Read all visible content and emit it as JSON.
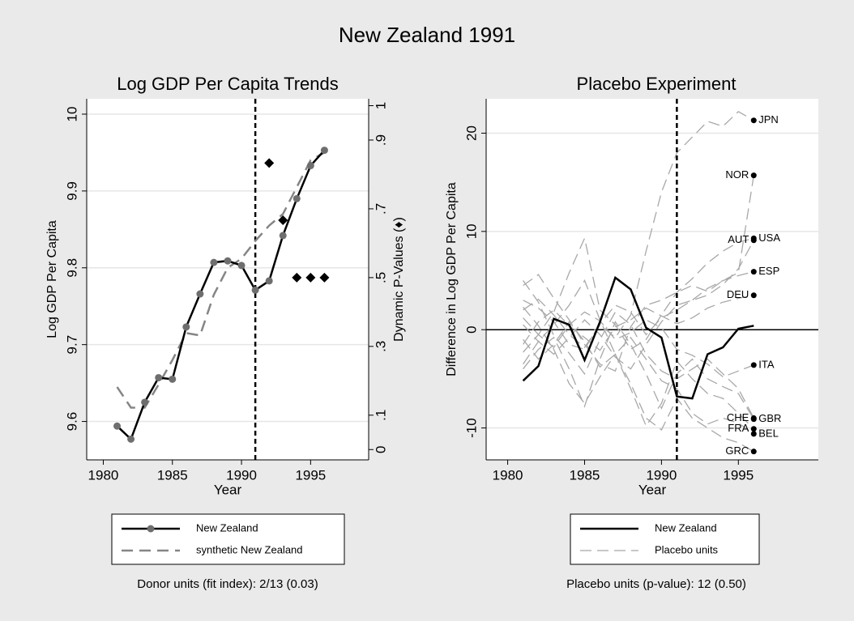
{
  "title": "New Zealand 1991",
  "chart_data": [
    {
      "type": "line",
      "title": "Log GDP Per Capita Trends",
      "x_label": "Year",
      "y_label": "Log GDP Per Capita",
      "y2_label": "Dynamic P-Values (♦)",
      "x": [
        1981,
        1982,
        1983,
        1984,
        1985,
        1986,
        1987,
        1988,
        1989,
        1990,
        1991,
        1992,
        1993,
        1994,
        1995,
        1996
      ],
      "series": [
        {
          "name": "New Zealand",
          "color": "#000000",
          "marker_color": "#6e6e6e",
          "marker": true,
          "dash": "none",
          "values": [
            9.594,
            9.577,
            9.625,
            9.657,
            9.655,
            9.723,
            9.766,
            9.807,
            9.809,
            9.803,
            9.771,
            9.783,
            9.842,
            9.89,
            9.933,
            9.953
          ]
        },
        {
          "name": "synthetic New Zealand",
          "color": "#858585",
          "marker": false,
          "dash": "14,8",
          "values": [
            9.645,
            9.618,
            9.618,
            9.648,
            9.68,
            9.715,
            9.712,
            9.765,
            9.8,
            9.812,
            9.835,
            9.855,
            9.87,
            9.905,
            9.94,
            9.95
          ]
        }
      ],
      "p_values": {
        "axis": "y2",
        "color": "#000000",
        "x": [
          1992,
          1993,
          1994,
          1995,
          1996
        ],
        "values": [
          0.833,
          0.667,
          0.5,
          0.5,
          0.5
        ]
      },
      "vline": 1991,
      "xlim": [
        1978.8,
        1999.2
      ],
      "xticks": [
        1980,
        1985,
        1990,
        1995
      ],
      "ylim": [
        9.55,
        10.02
      ],
      "yticks": [
        9.6,
        9.7,
        9.8,
        9.9,
        10
      ],
      "y2lim": [
        -0.03,
        1.02
      ],
      "y2ticks": [
        0,
        {
          "value": 0.1,
          "label": ".1"
        },
        {
          "value": 0.3,
          "label": ".3"
        },
        {
          "value": 0.5,
          "label": ".5"
        },
        {
          "value": 0.7,
          "label": ".7"
        },
        {
          "value": 0.9,
          "label": ".9"
        },
        1
      ],
      "grid": true,
      "note": "Donor units (fit index): 2/13 (0.03)"
    },
    {
      "type": "placebo",
      "title": "Placebo Experiment",
      "x_label": "Year",
      "y_label": "Difference in Log  GDP Per Capita",
      "x": [
        1981,
        1982,
        1983,
        1984,
        1985,
        1986,
        1987,
        1988,
        1989,
        1990,
        1991,
        1992,
        1993,
        1994,
        1995,
        1996
      ],
      "series": [
        {
          "name": "New Zealand",
          "color": "#000000",
          "dash": "none",
          "values": [
            -5.2,
            -3.7,
            1.1,
            0.5,
            -3.1,
            0.8,
            5.3,
            4.1,
            0.2,
            -0.8,
            -6.8,
            -7.0,
            -2.5,
            -1.8,
            0.1,
            0.4
          ]
        }
      ],
      "placebo": {
        "name": "Placebo units",
        "color": "#a8a8a8",
        "dash": "14,7",
        "units": [
          {
            "label": "JPN",
            "label_side": "right",
            "values": [
              2.0,
              3.1,
              1.5,
              -0.5,
              -1.8,
              0.5,
              -0.8,
              1.5,
              8.0,
              14.0,
              18.0,
              19.6,
              21.2,
              20.7,
              22.2,
              21.3
            ]
          },
          {
            "label": "NOR",
            "label_side": "left",
            "values": [
              4.5,
              5.6,
              3.2,
              1.0,
              -1.5,
              -3.5,
              -4.2,
              0.3,
              2.5,
              3.0,
              3.8,
              4.5,
              3.9,
              5.0,
              5.8,
              15.7
            ]
          },
          {
            "label": "USA",
            "label_side": "right",
            "values": [
              -2.3,
              -0.5,
              1.8,
              5.8,
              9.3,
              2.0,
              0.5,
              -2.0,
              -1.0,
              1.5,
              3.8,
              5.2,
              6.8,
              8.0,
              8.9,
              9.3
            ]
          },
          {
            "label": "AUT",
            "label_side": "left",
            "values": [
              0.5,
              -1.2,
              -2.5,
              -0.8,
              1.0,
              -0.5,
              -2.8,
              -4.0,
              -1.5,
              0.8,
              2.5,
              3.0,
              3.5,
              4.6,
              6.2,
              9.1
            ]
          },
          {
            "label": "ESP",
            "label_side": "right",
            "values": [
              3.0,
              2.2,
              0.8,
              -1.5,
              -2.0,
              0.6,
              2.5,
              1.8,
              -0.5,
              1.2,
              2.0,
              3.0,
              4.2,
              5.0,
              5.5,
              5.9
            ]
          },
          {
            "label": "DEU",
            "label_side": "left",
            "values": [
              -1.5,
              0.8,
              2.0,
              0.4,
              -0.8,
              -2.1,
              0.3,
              1.0,
              2.2,
              1.4,
              0.6,
              1.2,
              2.2,
              2.8,
              3.2,
              3.5
            ]
          },
          {
            "label": "ITA",
            "label_side": "right",
            "values": [
              1.2,
              -0.5,
              -1.8,
              0.5,
              1.8,
              0.9,
              -1.0,
              -0.3,
              1.0,
              0.2,
              -2.0,
              -2.6,
              -3.5,
              -4.8,
              -4.2,
              -3.6
            ]
          },
          {
            "label": "CHE",
            "label_side": "left",
            "values": [
              5.0,
              2.8,
              -0.6,
              -2.4,
              -4.5,
              -1.0,
              1.8,
              0.5,
              -2.5,
              -4.2,
              -5.0,
              -4.0,
              -3.0,
              -4.5,
              -6.0,
              -9.0
            ]
          },
          {
            "label": "GBR",
            "label_side": "right",
            "values": [
              -4.0,
              -2.0,
              -0.8,
              -4.0,
              -7.8,
              -3.0,
              0.8,
              -1.5,
              -4.5,
              -8.0,
              -4.5,
              -3.0,
              -5.0,
              -5.8,
              -6.5,
              -9.1
            ]
          },
          {
            "label": "FRA",
            "label_side": "left",
            "values": [
              2.3,
              0.4,
              -2.0,
              -5.5,
              -7.5,
              -4.8,
              -2.5,
              -6.0,
              -9.8,
              -7.5,
              -3.2,
              -5.0,
              -6.5,
              -7.0,
              -8.5,
              -10.1
            ]
          },
          {
            "label": "BEL",
            "label_side": "right",
            "values": [
              -1.0,
              -3.0,
              -1.5,
              0.8,
              -1.2,
              -3.8,
              -2.5,
              -0.8,
              -3.0,
              -5.2,
              -6.0,
              -8.5,
              -9.6,
              -9.0,
              -9.5,
              -10.6
            ]
          },
          {
            "label": "GRC",
            "label_side": "left",
            "values": [
              -3.5,
              -1.2,
              0.5,
              2.5,
              5.0,
              1.0,
              -2.5,
              -5.5,
              -9.0,
              -10.2,
              -7.0,
              -9.0,
              -10.0,
              -11.0,
              -11.5,
              -12.4
            ]
          }
        ]
      },
      "vline": 1991,
      "hline": 0,
      "xlim": [
        1978.6,
        2000.2
      ],
      "xticks": [
        1980,
        1985,
        1990,
        1995
      ],
      "ylim": [
        -13.25,
        23.5
      ],
      "yticks": [
        -10,
        0,
        10,
        20
      ],
      "grid": true,
      "note": "Placebo units (p-value): 12 (0.50)"
    }
  ]
}
